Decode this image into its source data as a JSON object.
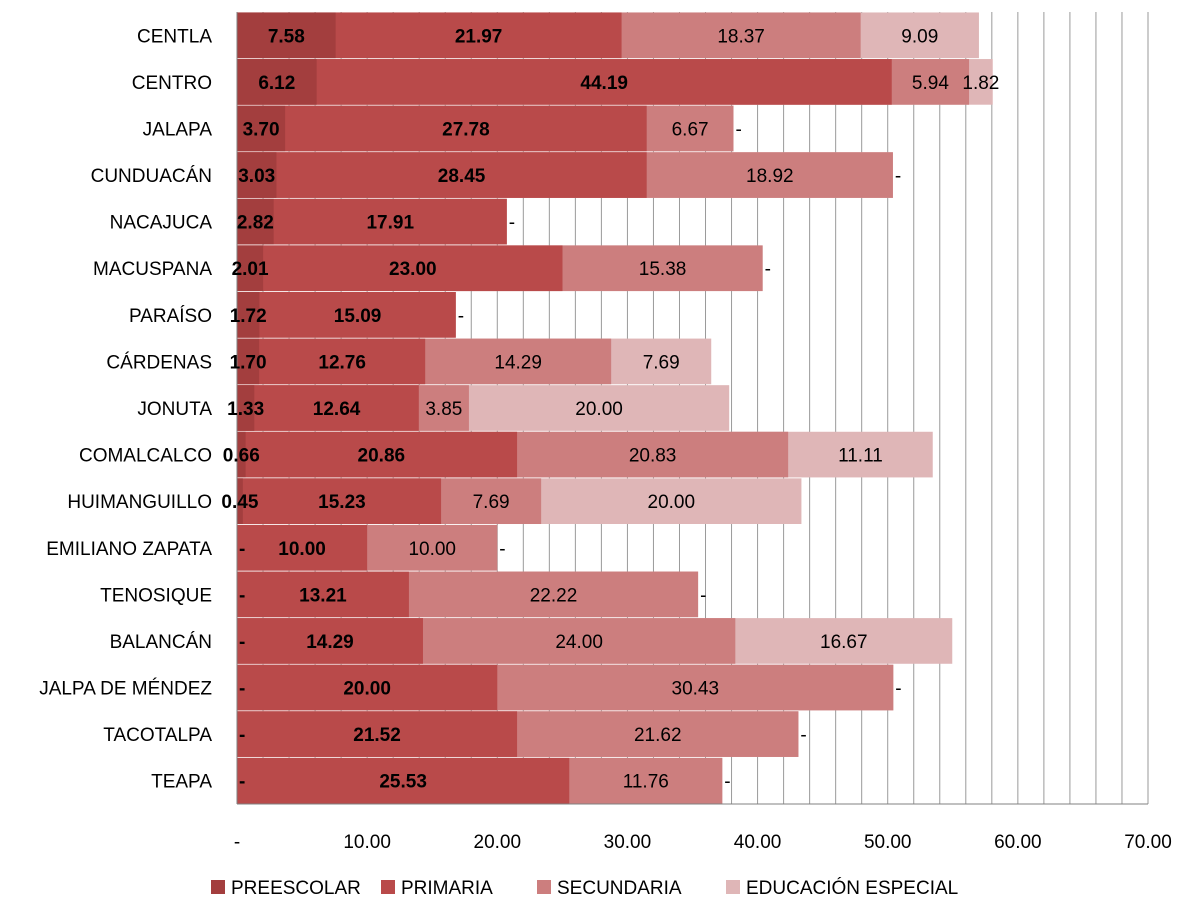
{
  "chart_data": {
    "type": "bar",
    "orientation": "horizontal",
    "stacking": "stacked-by-overlap",
    "categories": [
      "CENTLA",
      "CENTRO",
      "JALAPA",
      "CUNDUACÁN",
      "NACAJUCA",
      "MACUSPANA",
      "PARAÍSO",
      "CÁRDENAS",
      "JONUTA",
      "COMALCALCO",
      "HUIMANGUILLO",
      "EMILIANO ZAPATA",
      "TENOSIQUE",
      "BALANCÁN",
      "JALPA DE MÉNDEZ",
      "TACOTALPA",
      "TEAPA"
    ],
    "series": [
      {
        "name": "PREESCOLAR",
        "color": "#A33E3E",
        "bold_labels": true,
        "values": [
          7.58,
          6.12,
          3.7,
          3.03,
          2.82,
          2.01,
          1.72,
          1.7,
          1.33,
          0.66,
          0.45,
          0,
          0,
          0,
          0,
          0,
          0
        ],
        "labels": [
          "7.58",
          "6.12",
          "3.70",
          "3.03",
          "2.82",
          "2.01",
          "1.72",
          "1.70",
          "1.33",
          "0.66",
          "0.45",
          "-",
          "-",
          "-",
          "-",
          "-",
          "-"
        ]
      },
      {
        "name": "PRIMARIA",
        "color": "#B94A4A",
        "bold_labels": true,
        "values": [
          21.97,
          44.19,
          27.78,
          28.45,
          17.91,
          23.0,
          15.09,
          12.76,
          12.64,
          20.86,
          15.23,
          10.0,
          13.21,
          14.29,
          20.0,
          21.52,
          25.53
        ],
        "labels": [
          "21.97",
          "44.19",
          "27.78",
          "28.45",
          "17.91",
          "23.00",
          "15.09",
          "12.76",
          "12.64",
          "20.86",
          "15.23",
          "10.00",
          "13.21",
          "14.29",
          "20.00",
          "21.52",
          "25.53"
        ]
      },
      {
        "name": "SECUNDARIA",
        "color": "#CC7E7E",
        "bold_labels": false,
        "values": [
          18.37,
          5.94,
          6.67,
          18.92,
          0,
          15.38,
          0,
          14.29,
          3.85,
          20.83,
          7.69,
          10.0,
          22.22,
          24.0,
          30.43,
          21.62,
          11.76
        ],
        "labels": [
          "18.37",
          "5.94",
          "6.67",
          "18.92",
          "",
          "15.38",
          "",
          "14.29",
          "3.85",
          "20.83",
          "7.69",
          "10.00",
          "22.22",
          "24.00",
          "30.43",
          "21.62",
          "11.76"
        ]
      },
      {
        "name": "EDUCACIÓN ESPECIAL",
        "color": "#DFB6B7",
        "bold_labels": false,
        "values": [
          9.09,
          1.82,
          0,
          0,
          0,
          0,
          0,
          7.69,
          20.0,
          11.11,
          20.0,
          0,
          0,
          16.67,
          0,
          0,
          0
        ],
        "labels": [
          "9.09",
          "1.82",
          "-",
          "-",
          "-",
          "-",
          "-",
          "7.69",
          "20.00",
          "11.11",
          "20.00",
          "-",
          "-",
          "16.67",
          "-",
          "-",
          "-"
        ]
      }
    ],
    "x_ticks": [
      "-",
      "10.00",
      "20.00",
      "30.00",
      "40.00",
      "50.00",
      "60.00",
      "70.00"
    ],
    "xlim": [
      0,
      70
    ],
    "xlabel": "",
    "ylabel": "",
    "title": "",
    "grid": "vertical",
    "legend_position": "bottom"
  }
}
